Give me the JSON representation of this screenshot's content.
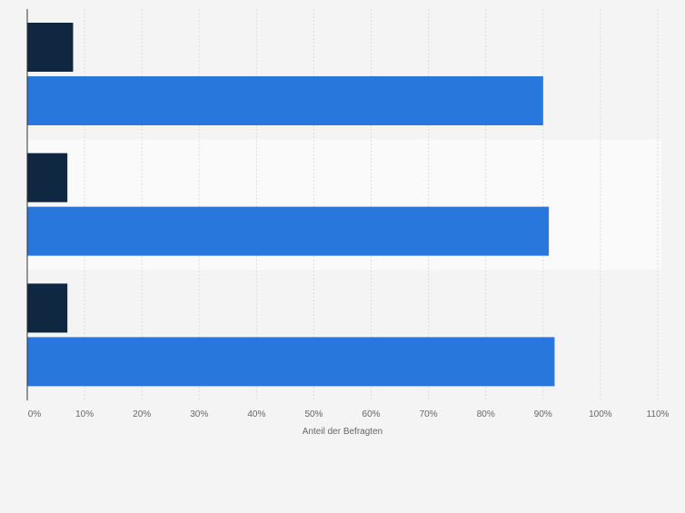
{
  "chart_data": {
    "type": "bar",
    "orientation": "horizontal",
    "categories": [
      "",
      "",
      ""
    ],
    "series": [
      {
        "values": [
          8,
          7,
          7
        ],
        "color": "#0f2740"
      },
      {
        "values": [
          90,
          91,
          92
        ],
        "color": "#2777dd"
      }
    ],
    "xlabel": "Anteil der Befragten",
    "ylabel": "",
    "xlim": [
      0,
      110
    ],
    "xticks": [
      0,
      10,
      20,
      30,
      40,
      50,
      60,
      70,
      80,
      90,
      100,
      110
    ],
    "xtick_labels": [
      "0%",
      "10%",
      "20%",
      "30%",
      "40%",
      "50%",
      "60%",
      "70%",
      "80%",
      "90%",
      "100%",
      "110%"
    ],
    "grid": true,
    "legend": "none",
    "colors": {
      "background": "#f4f4f4",
      "band": "#fafafa",
      "grid": "#dcdcdc",
      "axis": "#333333"
    }
  }
}
